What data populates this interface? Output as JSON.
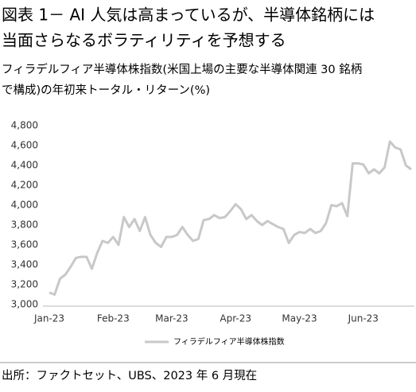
{
  "chart_data": {
    "type": "line",
    "title": [
      "図表 1－ AI 人気は高まっているが、半導体銘柄には",
      "当面さらなるボラティリティを予想する"
    ],
    "subtitle": [
      "フィラデルフィア半導体株指数(米国上場の主要な半導体関連 30 銘柄",
      "で構成)の年初来トータル・リターン(%)"
    ],
    "categories": [
      "Jan-23",
      null,
      null,
      null,
      null,
      null,
      null,
      null,
      null,
      null,
      null,
      null,
      "Feb-23",
      null,
      null,
      null,
      null,
      null,
      null,
      null,
      null,
      null,
      null,
      "Mar-23",
      null,
      null,
      null,
      null,
      null,
      null,
      null,
      null,
      null,
      null,
      null,
      "Apr-23",
      null,
      null,
      null,
      null,
      null,
      null,
      null,
      null,
      null,
      null,
      null,
      "May-23",
      null,
      null,
      null,
      null,
      null,
      null,
      null,
      null,
      null,
      null,
      null,
      "Jun-23",
      null,
      null,
      null,
      null,
      null,
      null,
      null,
      null,
      null
    ],
    "series": [
      {
        "name": "フィラデルフィア半導体株指数",
        "color": "#c8c8c8",
        "values": [
          3120,
          3100,
          3260,
          3300,
          3380,
          3470,
          3480,
          3480,
          3360,
          3520,
          3640,
          3620,
          3680,
          3600,
          3880,
          3780,
          3860,
          3740,
          3880,
          3700,
          3620,
          3580,
          3680,
          3680,
          3700,
          3780,
          3700,
          3640,
          3660,
          3850,
          3860,
          3900,
          3870,
          3880,
          3940,
          4010,
          3960,
          3860,
          3900,
          3840,
          3800,
          3840,
          3810,
          3780,
          3760,
          3620,
          3700,
          3730,
          3720,
          3760,
          3720,
          3740,
          3820,
          4000,
          3990,
          4020,
          3890,
          4420,
          4420,
          4410,
          4320,
          4360,
          4320,
          4380,
          4640,
          4580,
          4560,
          4400,
          4360
        ]
      }
    ],
    "ylim": [
      3000,
      4800
    ],
    "yticks": [
      {
        "value": 3000,
        "label": "3,000"
      },
      {
        "value": 3200,
        "label": "3,200"
      },
      {
        "value": 3400,
        "label": "3,400"
      },
      {
        "value": 3600,
        "label": "3,600"
      },
      {
        "value": 3800,
        "label": "3,800"
      },
      {
        "value": 4000,
        "label": "4,000"
      },
      {
        "value": 4200,
        "label": "4,200"
      },
      {
        "value": 4400,
        "label": "4,400"
      },
      {
        "value": 4600,
        "label": "4,600"
      },
      {
        "value": 4800,
        "label": "4,800"
      }
    ],
    "grid": false,
    "legend": "bottom",
    "source": "出所：ファクトセット、UBS、2023 年 6 月現在"
  }
}
